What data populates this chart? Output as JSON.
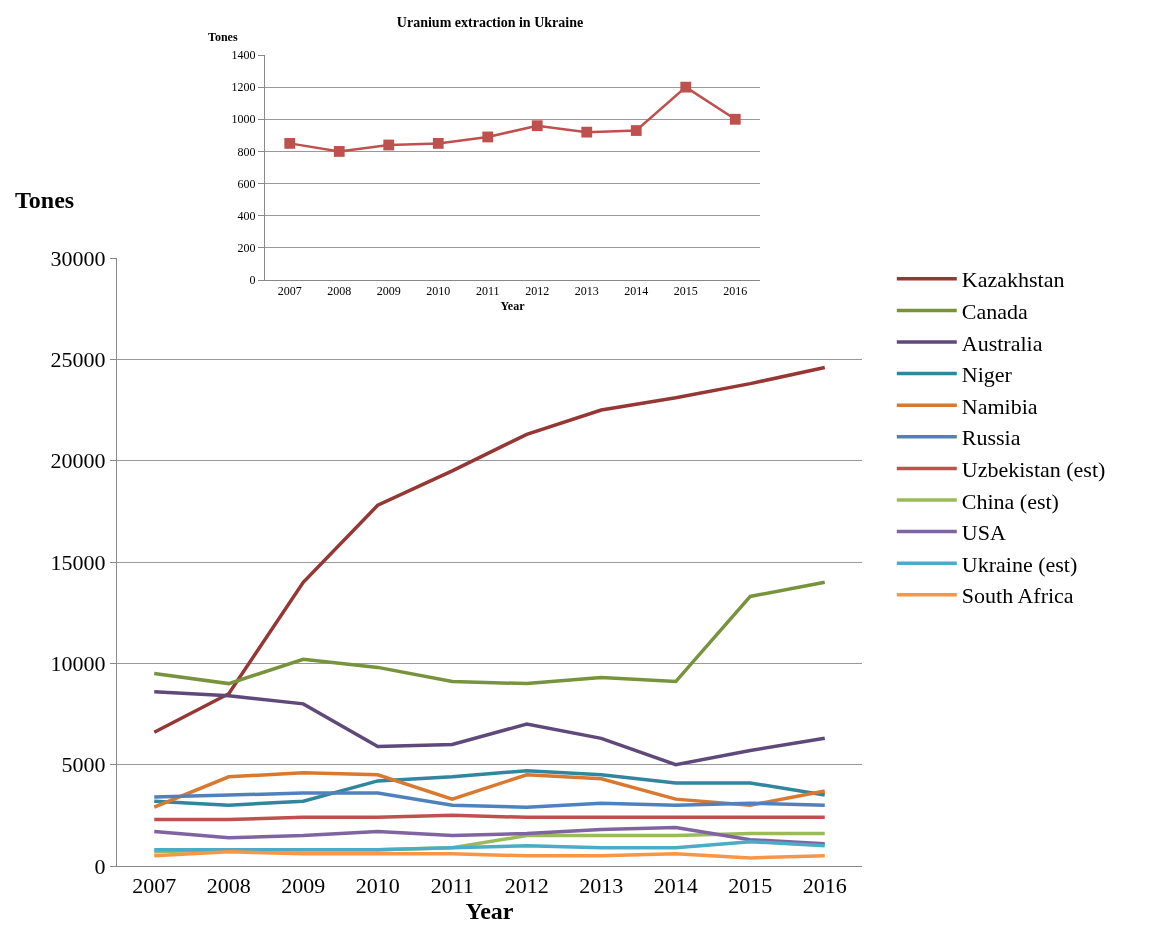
{
  "chart_data": [
    {
      "type": "line",
      "xlabel": "Year",
      "ylabel": "Tones",
      "categories": [
        "2007",
        "2008",
        "2009",
        "2010",
        "2011",
        "2012",
        "2013",
        "2014",
        "2015",
        "2016"
      ],
      "ylim": [
        0,
        30000
      ],
      "yticks": [
        0,
        5000,
        10000,
        15000,
        20000,
        25000,
        30000
      ],
      "grid": "y",
      "legend": "right",
      "marker": "none",
      "line_style": "solid",
      "series": [
        {
          "name": "Kazakhstan",
          "color": "#953735",
          "values": [
            6600,
            8500,
            14000,
            17800,
            19500,
            21300,
            22500,
            23100,
            23800,
            24600
          ]
        },
        {
          "name": "Canada",
          "color": "#77933c",
          "values": [
            9500,
            9000,
            10200,
            9800,
            9100,
            9000,
            9300,
            9100,
            13300,
            14000
          ]
        },
        {
          "name": "Australia",
          "color": "#5f497a",
          "values": [
            8600,
            8400,
            8000,
            5900,
            6000,
            7000,
            6300,
            5000,
            5700,
            6300
          ]
        },
        {
          "name": "Niger",
          "color": "#31859c",
          "values": [
            3200,
            3000,
            3200,
            4200,
            4400,
            4700,
            4500,
            4100,
            4100,
            3500
          ]
        },
        {
          "name": "Namibia",
          "color": "#d9782f",
          "values": [
            2900,
            4400,
            4600,
            4500,
            3300,
            4500,
            4300,
            3300,
            3000,
            3700
          ]
        },
        {
          "name": "Russia",
          "color": "#4f81bd",
          "values": [
            3400,
            3500,
            3600,
            3600,
            3000,
            2900,
            3100,
            3000,
            3100,
            3000
          ]
        },
        {
          "name": "Uzbekistan (est)",
          "color": "#c0504d",
          "values": [
            2300,
            2300,
            2400,
            2400,
            2500,
            2400,
            2400,
            2400,
            2400,
            2400
          ]
        },
        {
          "name": "China (est)",
          "color": "#9bbb59",
          "values": [
            700,
            800,
            800,
            800,
            900,
            1500,
            1500,
            1500,
            1600,
            1600
          ]
        },
        {
          "name": "USA",
          "color": "#8064a2",
          "values": [
            1700,
            1400,
            1500,
            1700,
            1500,
            1600,
            1800,
            1900,
            1300,
            1100
          ]
        },
        {
          "name": "Ukraine (est)",
          "color": "#4bacc6",
          "values": [
            800,
            800,
            800,
            800,
            900,
            1000,
            900,
            900,
            1200,
            1000
          ]
        },
        {
          "name": "South Africa",
          "color": "#f79646",
          "values": [
            500,
            700,
            600,
            600,
            600,
            500,
            500,
            600,
            400,
            500
          ]
        }
      ]
    },
    {
      "type": "line",
      "title": "Uranium extraction in Ukraine",
      "xlabel": "Year",
      "ylabel": "Tones",
      "categories": [
        "2007",
        "2008",
        "2009",
        "2010",
        "2011",
        "2012",
        "2013",
        "2014",
        "2015",
        "2016"
      ],
      "ylim": [
        0,
        1400
      ],
      "yticks": [
        0,
        200,
        400,
        600,
        800,
        1000,
        1200,
        1400
      ],
      "grid": "y",
      "legend": false,
      "marker": "square",
      "line_style": "solid",
      "series": [
        {
          "color": "#c0504d",
          "values": [
            850,
            800,
            840,
            850,
            890,
            960,
            920,
            930,
            1200,
            1000
          ]
        }
      ]
    }
  ]
}
